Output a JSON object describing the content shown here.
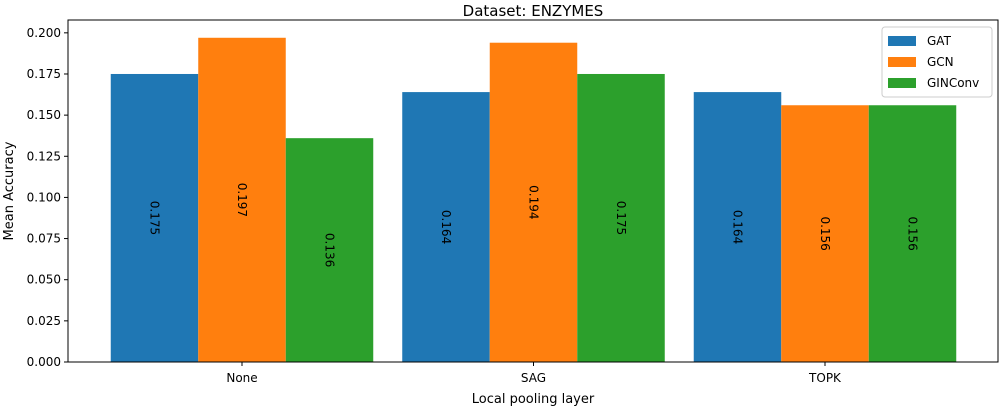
{
  "chart_data": {
    "type": "bar",
    "title": "Dataset: ENZYMES",
    "xlabel": "Local pooling layer",
    "ylabel": "Mean Accuracy",
    "categories": [
      "None",
      "SAG",
      "TOPK"
    ],
    "ylim": [
      0,
      0.2078
    ],
    "yticks": [
      0.0,
      0.025,
      0.05,
      0.075,
      0.1,
      0.125,
      0.15,
      0.175,
      0.2
    ],
    "ytick_labels": [
      "0.000",
      "0.025",
      "0.050",
      "0.075",
      "0.100",
      "0.125",
      "0.150",
      "0.175",
      "0.200"
    ],
    "grid": false,
    "legend_position": "top-right",
    "series": [
      {
        "name": "GAT",
        "color": "#1f77b4",
        "values": [
          0.175,
          0.164,
          0.164
        ],
        "labels": [
          "0.175",
          "0.164",
          "0.164"
        ]
      },
      {
        "name": "GCN",
        "color": "#ff7f0e",
        "values": [
          0.197,
          0.194,
          0.156
        ],
        "labels": [
          "0.197",
          "0.194",
          "0.156"
        ]
      },
      {
        "name": "GINConv",
        "color": "#2ca02c",
        "values": [
          0.136,
          0.175,
          0.156
        ],
        "labels": [
          "0.136",
          "0.175",
          "0.156"
        ]
      }
    ]
  }
}
